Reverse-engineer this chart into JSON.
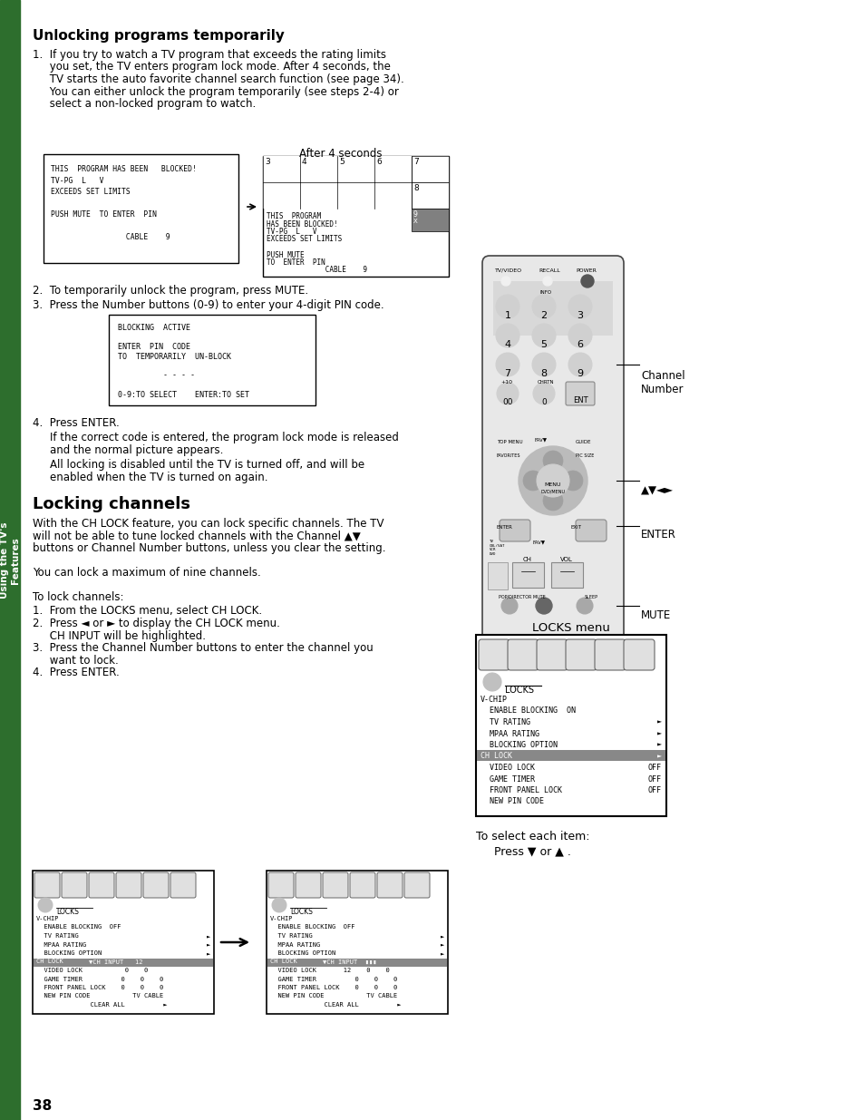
{
  "page_number": "38",
  "bg_color": "#ffffff",
  "sidebar_color": "#2d6e2d",
  "sidebar_text": "Using the TV's\nFeatures",
  "section1_title": "Unlocking programs temporarily",
  "section1_body_lines": [
    "1.  If you try to watch a TV program that exceeds the rating limits",
    "     you set, the TV enters program lock mode. After 4 seconds, the",
    "     TV starts the auto favorite channel search function (see page 34).",
    "     You can either unlock the program temporarily (see steps 2-4) or",
    "     select a non-locked program to watch."
  ],
  "after_4_seconds": "After 4 seconds",
  "step2": "2.  To temporarily unlock the program, press MUTE.",
  "step3": "3.  Press the Number buttons (0-9) to enter your 4-digit PIN code.",
  "step4_a": "4.  Press ",
  "step4_b": "ENTER.",
  "step4_body": [
    "     If the correct code is entered, the program lock mode is released",
    "     and the normal picture appears.",
    "     All locking is disabled until the TV is turned off, and will be",
    "     enabled when the TV is turned on again."
  ],
  "section2_title": "Locking channels",
  "section2_body": [
    "With the CH LOCK feature, you can lock specific channels. The TV",
    "will not be able to tune locked channels with the Channel ▲▼",
    "buttons or Channel Number buttons, unless you clear the setting.",
    "",
    "You can lock a maximum of nine channels.",
    "",
    "To lock channels:"
  ],
  "lock_steps": [
    "1.  From the LOCKS menu, select CH LOCK.",
    "2.  Press ◄ or ► to display the CH LOCK menu.",
    "     CH INPUT will be highlighted.",
    "3.  Press the Channel Number buttons to enter the channel you",
    "     want to lock.",
    "4.  Press ENTER."
  ],
  "locks_menu_label": "LOCKS menu",
  "to_select": "To select each item:",
  "press_nav": "Press ▼ or ▲ .",
  "channel_number_label": "Channel\nNumber",
  "enter_label": "ENTER",
  "mute_label": "MUTE",
  "arrow_label": "▲▼◄►"
}
